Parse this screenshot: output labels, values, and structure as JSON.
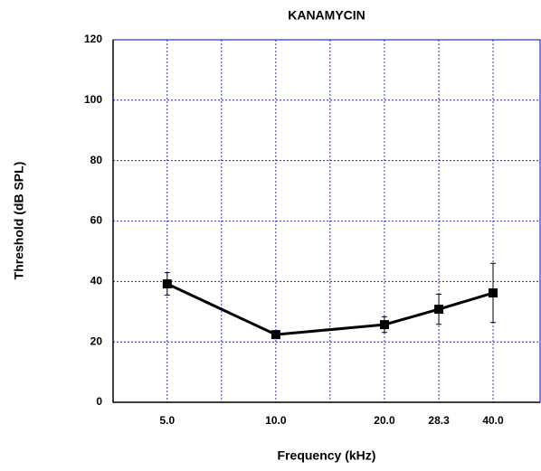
{
  "chart_data": {
    "type": "line",
    "title": "KANAMYCIN",
    "xlabel": "Frequency (kHz)",
    "ylabel": "Threshold (dB SPL)",
    "x": [
      5,
      10,
      20,
      28.3,
      40
    ],
    "series": [
      {
        "color": "#000000",
        "values": [
          39.2,
          22.4,
          25.7,
          30.8,
          36.2
        ],
        "errors": [
          3.7,
          1.2,
          2.6,
          5.0,
          9.8
        ]
      }
    ],
    "xscale": "log",
    "xlim": [
      3.54,
      54
    ],
    "xticks": [
      {
        "value": 5,
        "label": "5.0"
      },
      {
        "value": 10,
        "label": "10.0"
      },
      {
        "value": 20,
        "label": "20.0"
      },
      28.3,
      {
        "value": 40,
        "label": "40.0"
      }
    ],
    "xminor_grid": [
      7.07,
      14.14
    ],
    "ylim": [
      0,
      120
    ],
    "yticks": [
      0,
      20,
      40,
      60,
      80,
      100,
      120
    ],
    "grid": true,
    "grid_color": "#0000cc"
  }
}
